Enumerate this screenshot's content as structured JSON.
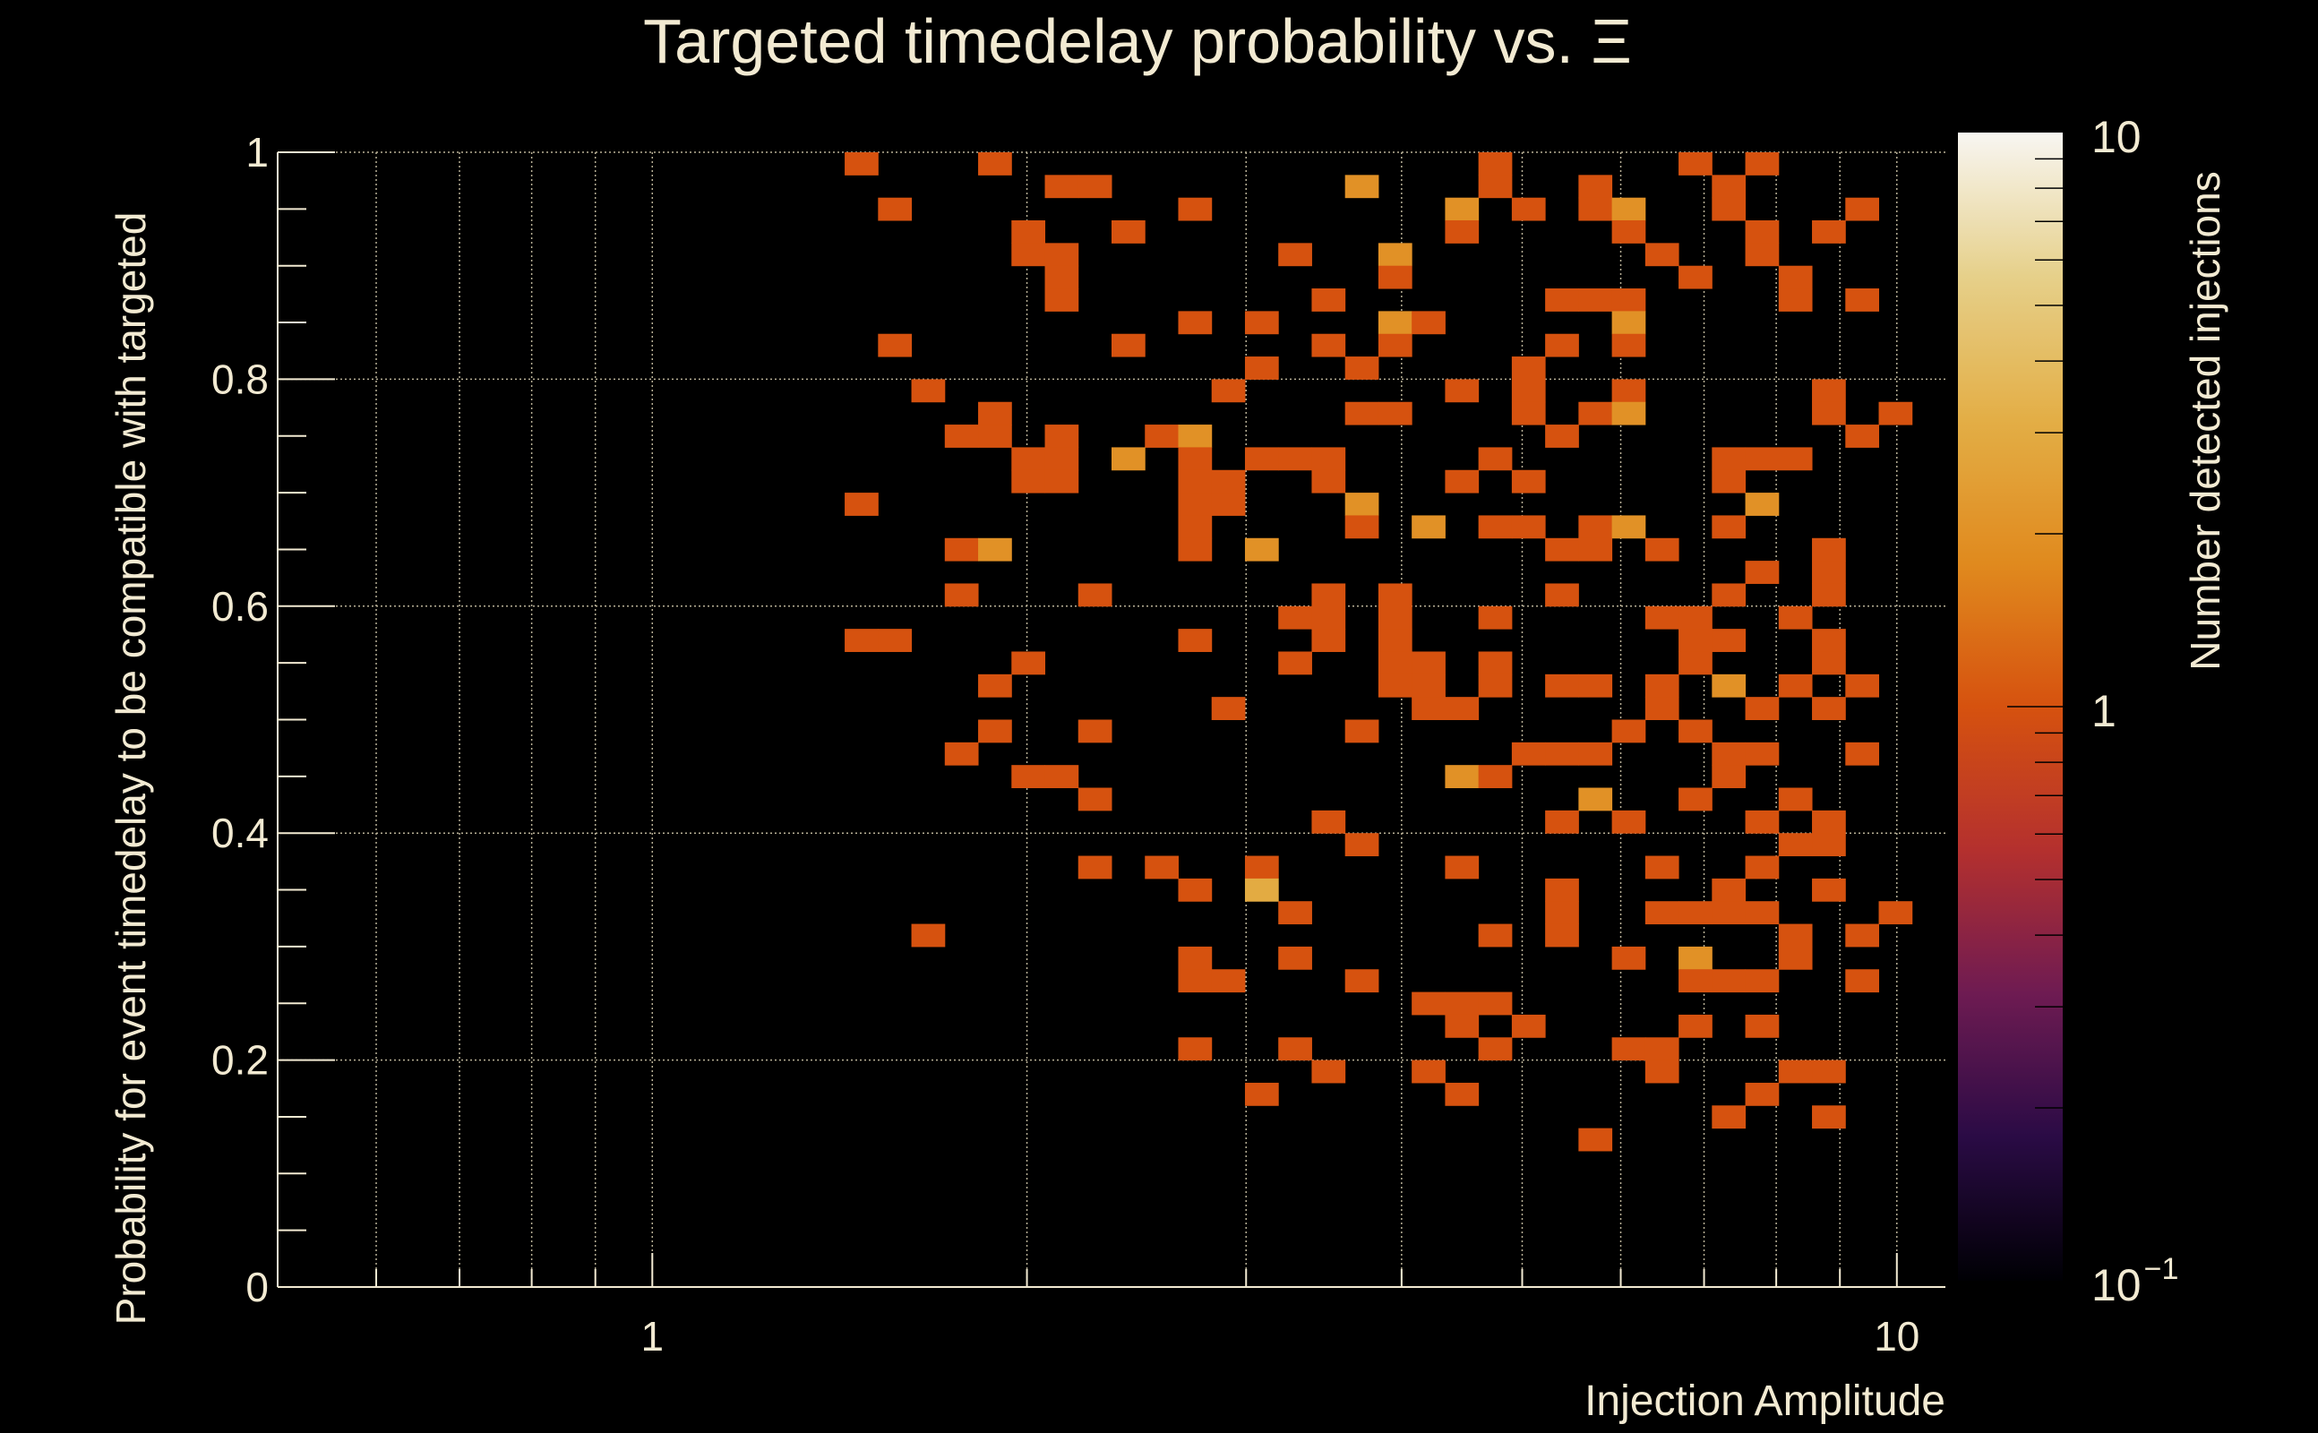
{
  "chart_data": {
    "type": "heatmap",
    "title": "Targeted timedelay probability vs. Ξ",
    "xlabel": "Injection Amplitude",
    "ylabel": "Probability for event timedelay to be compatible with targeted",
    "zlabel": "Number detected injections",
    "x_scale": "log",
    "xlim": [
      0.5,
      10.94
    ],
    "ylim": [
      0,
      1
    ],
    "z_scale": "log",
    "zlim": [
      0.1,
      10
    ],
    "nbins_x": 50,
    "nbins_y": 50,
    "grid": true,
    "x_ticks": [
      {
        "value": 1,
        "label": "1"
      },
      {
        "value": 10,
        "label": "10"
      }
    ],
    "y_ticks": [
      {
        "value": 0,
        "label": "0"
      },
      {
        "value": 0.2,
        "label": "0.2"
      },
      {
        "value": 0.4,
        "label": "0.4"
      },
      {
        "value": 0.6,
        "label": "0.6"
      },
      {
        "value": 0.8,
        "label": "0.8"
      },
      {
        "value": 1,
        "label": "1"
      }
    ],
    "z_ticks": [
      {
        "value": 10,
        "label": "10",
        "exp": ""
      },
      {
        "value": 1,
        "label": "1",
        "exp": ""
      },
      {
        "value": 0.1,
        "label": "10",
        "exp": "−1"
      }
    ],
    "cell_format": [
      "x_bin_index",
      "y_bin_index",
      "count"
    ],
    "cells": [
      [
        17,
        49,
        1
      ],
      [
        21,
        49,
        1
      ],
      [
        36,
        49,
        1
      ],
      [
        42,
        49,
        1
      ],
      [
        44,
        49,
        1
      ],
      [
        23,
        48,
        1
      ],
      [
        24,
        48,
        1
      ],
      [
        32,
        48,
        2
      ],
      [
        36,
        48,
        1
      ],
      [
        39,
        48,
        1
      ],
      [
        43,
        48,
        1
      ],
      [
        18,
        47,
        1
      ],
      [
        27,
        47,
        1
      ],
      [
        35,
        47,
        2
      ],
      [
        37,
        47,
        1
      ],
      [
        39,
        47,
        1
      ],
      [
        40,
        47,
        2
      ],
      [
        43,
        47,
        1
      ],
      [
        47,
        47,
        1
      ],
      [
        22,
        46,
        1
      ],
      [
        25,
        46,
        1
      ],
      [
        35,
        46,
        1
      ],
      [
        40,
        46,
        1
      ],
      [
        44,
        46,
        1
      ],
      [
        46,
        46,
        1
      ],
      [
        22,
        45,
        1
      ],
      [
        23,
        45,
        1
      ],
      [
        30,
        45,
        1
      ],
      [
        33,
        45,
        2
      ],
      [
        41,
        45,
        1
      ],
      [
        44,
        45,
        1
      ],
      [
        23,
        44,
        1
      ],
      [
        33,
        44,
        1
      ],
      [
        42,
        44,
        1
      ],
      [
        45,
        44,
        1
      ],
      [
        23,
        43,
        1
      ],
      [
        31,
        43,
        1
      ],
      [
        38,
        43,
        1
      ],
      [
        39,
        43,
        1
      ],
      [
        40,
        43,
        1
      ],
      [
        45,
        43,
        1
      ],
      [
        47,
        43,
        1
      ],
      [
        27,
        42,
        1
      ],
      [
        29,
        42,
        1
      ],
      [
        33,
        42,
        2
      ],
      [
        34,
        42,
        1
      ],
      [
        40,
        42,
        2
      ],
      [
        18,
        41,
        1
      ],
      [
        25,
        41,
        1
      ],
      [
        31,
        41,
        1
      ],
      [
        33,
        41,
        1
      ],
      [
        38,
        41,
        1
      ],
      [
        40,
        41,
        1
      ],
      [
        29,
        40,
        1
      ],
      [
        32,
        40,
        1
      ],
      [
        37,
        40,
        1
      ],
      [
        19,
        39,
        1
      ],
      [
        28,
        39,
        1
      ],
      [
        35,
        39,
        1
      ],
      [
        37,
        39,
        1
      ],
      [
        40,
        39,
        1
      ],
      [
        46,
        39,
        1
      ],
      [
        21,
        38,
        1
      ],
      [
        32,
        38,
        1
      ],
      [
        33,
        38,
        1
      ],
      [
        37,
        38,
        1
      ],
      [
        39,
        38,
        1
      ],
      [
        40,
        38,
        2
      ],
      [
        46,
        38,
        1
      ],
      [
        48,
        38,
        1
      ],
      [
        20,
        37,
        1
      ],
      [
        21,
        37,
        1
      ],
      [
        23,
        37,
        1
      ],
      [
        26,
        37,
        1
      ],
      [
        27,
        37,
        2
      ],
      [
        38,
        37,
        1
      ],
      [
        47,
        37,
        1
      ],
      [
        22,
        36,
        1
      ],
      [
        23,
        36,
        1
      ],
      [
        25,
        36,
        2
      ],
      [
        27,
        36,
        1
      ],
      [
        29,
        36,
        1
      ],
      [
        30,
        36,
        1
      ],
      [
        31,
        36,
        1
      ],
      [
        36,
        36,
        1
      ],
      [
        43,
        36,
        1
      ],
      [
        44,
        36,
        1
      ],
      [
        45,
        36,
        1
      ],
      [
        22,
        35,
        1
      ],
      [
        23,
        35,
        1
      ],
      [
        27,
        35,
        1
      ],
      [
        28,
        35,
        1
      ],
      [
        31,
        35,
        1
      ],
      [
        35,
        35,
        1
      ],
      [
        37,
        35,
        1
      ],
      [
        43,
        35,
        1
      ],
      [
        17,
        34,
        1
      ],
      [
        27,
        34,
        1
      ],
      [
        28,
        34,
        1
      ],
      [
        32,
        34,
        2
      ],
      [
        44,
        34,
        2
      ],
      [
        27,
        33,
        1
      ],
      [
        32,
        33,
        1
      ],
      [
        34,
        33,
        2
      ],
      [
        36,
        33,
        1
      ],
      [
        37,
        33,
        1
      ],
      [
        39,
        33,
        1
      ],
      [
        40,
        33,
        2
      ],
      [
        43,
        33,
        1
      ],
      [
        20,
        32,
        1
      ],
      [
        21,
        32,
        2
      ],
      [
        27,
        32,
        1
      ],
      [
        29,
        32,
        2
      ],
      [
        38,
        32,
        1
      ],
      [
        39,
        32,
        1
      ],
      [
        41,
        32,
        1
      ],
      [
        46,
        32,
        1
      ],
      [
        44,
        31,
        1
      ],
      [
        46,
        31,
        1
      ],
      [
        20,
        30,
        1
      ],
      [
        24,
        30,
        1
      ],
      [
        31,
        30,
        1
      ],
      [
        33,
        30,
        1
      ],
      [
        38,
        30,
        1
      ],
      [
        43,
        30,
        1
      ],
      [
        46,
        30,
        1
      ],
      [
        30,
        29,
        1
      ],
      [
        31,
        29,
        1
      ],
      [
        33,
        29,
        1
      ],
      [
        36,
        29,
        1
      ],
      [
        41,
        29,
        1
      ],
      [
        42,
        29,
        1
      ],
      [
        45,
        29,
        1
      ],
      [
        17,
        28,
        1
      ],
      [
        18,
        28,
        1
      ],
      [
        27,
        28,
        1
      ],
      [
        31,
        28,
        1
      ],
      [
        33,
        28,
        1
      ],
      [
        42,
        28,
        1
      ],
      [
        43,
        28,
        1
      ],
      [
        46,
        28,
        1
      ],
      [
        22,
        27,
        1
      ],
      [
        30,
        27,
        1
      ],
      [
        33,
        27,
        1
      ],
      [
        34,
        27,
        1
      ],
      [
        36,
        27,
        1
      ],
      [
        42,
        27,
        1
      ],
      [
        46,
        27,
        1
      ],
      [
        21,
        26,
        1
      ],
      [
        33,
        26,
        1
      ],
      [
        34,
        26,
        1
      ],
      [
        36,
        26,
        1
      ],
      [
        38,
        26,
        1
      ],
      [
        39,
        26,
        1
      ],
      [
        41,
        26,
        1
      ],
      [
        43,
        26,
        2
      ],
      [
        45,
        26,
        1
      ],
      [
        47,
        26,
        1
      ],
      [
        28,
        25,
        1
      ],
      [
        34,
        25,
        1
      ],
      [
        35,
        25,
        1
      ],
      [
        41,
        25,
        1
      ],
      [
        44,
        25,
        1
      ],
      [
        46,
        25,
        1
      ],
      [
        21,
        24,
        1
      ],
      [
        24,
        24,
        1
      ],
      [
        32,
        24,
        1
      ],
      [
        40,
        24,
        1
      ],
      [
        42,
        24,
        1
      ],
      [
        20,
        23,
        1
      ],
      [
        37,
        23,
        1
      ],
      [
        38,
        23,
        1
      ],
      [
        39,
        23,
        1
      ],
      [
        43,
        23,
        1
      ],
      [
        44,
        23,
        1
      ],
      [
        47,
        23,
        1
      ],
      [
        22,
        22,
        1
      ],
      [
        23,
        22,
        1
      ],
      [
        35,
        22,
        2
      ],
      [
        36,
        22,
        1
      ],
      [
        43,
        22,
        1
      ],
      [
        24,
        21,
        1
      ],
      [
        39,
        21,
        2
      ],
      [
        42,
        21,
        1
      ],
      [
        45,
        21,
        1
      ],
      [
        31,
        20,
        1
      ],
      [
        38,
        20,
        1
      ],
      [
        40,
        20,
        1
      ],
      [
        44,
        20,
        1
      ],
      [
        46,
        20,
        1
      ],
      [
        32,
        19,
        1
      ],
      [
        45,
        19,
        1
      ],
      [
        46,
        19,
        1
      ],
      [
        24,
        18,
        1
      ],
      [
        26,
        18,
        1
      ],
      [
        29,
        18,
        1
      ],
      [
        35,
        18,
        1
      ],
      [
        41,
        18,
        1
      ],
      [
        44,
        18,
        1
      ],
      [
        27,
        17,
        1
      ],
      [
        29,
        17,
        3
      ],
      [
        38,
        17,
        1
      ],
      [
        43,
        17,
        1
      ],
      [
        46,
        17,
        1
      ],
      [
        30,
        16,
        1
      ],
      [
        38,
        16,
        1
      ],
      [
        41,
        16,
        1
      ],
      [
        42,
        16,
        1
      ],
      [
        43,
        16,
        1
      ],
      [
        44,
        16,
        1
      ],
      [
        48,
        16,
        1
      ],
      [
        19,
        15,
        1
      ],
      [
        36,
        15,
        1
      ],
      [
        38,
        15,
        1
      ],
      [
        45,
        15,
        1
      ],
      [
        47,
        15,
        1
      ],
      [
        27,
        14,
        1
      ],
      [
        30,
        14,
        1
      ],
      [
        40,
        14,
        1
      ],
      [
        42,
        14,
        2
      ],
      [
        45,
        14,
        1
      ],
      [
        27,
        13,
        1
      ],
      [
        28,
        13,
        1
      ],
      [
        32,
        13,
        1
      ],
      [
        42,
        13,
        1
      ],
      [
        43,
        13,
        1
      ],
      [
        44,
        13,
        1
      ],
      [
        47,
        13,
        1
      ],
      [
        34,
        12,
        1
      ],
      [
        35,
        12,
        1
      ],
      [
        36,
        12,
        1
      ],
      [
        35,
        11,
        1
      ],
      [
        37,
        11,
        1
      ],
      [
        42,
        11,
        1
      ],
      [
        44,
        11,
        1
      ],
      [
        27,
        10,
        1
      ],
      [
        30,
        10,
        1
      ],
      [
        36,
        10,
        1
      ],
      [
        40,
        10,
        1
      ],
      [
        41,
        10,
        1
      ],
      [
        31,
        9,
        1
      ],
      [
        34,
        9,
        1
      ],
      [
        41,
        9,
        1
      ],
      [
        45,
        9,
        1
      ],
      [
        46,
        9,
        1
      ],
      [
        29,
        8,
        1
      ],
      [
        35,
        8,
        1
      ],
      [
        44,
        8,
        1
      ],
      [
        43,
        7,
        1
      ],
      [
        46,
        7,
        1
      ],
      [
        39,
        6,
        1
      ]
    ],
    "colormap": [
      "#000004",
      "#2a0b45",
      "#6e1b52",
      "#b4302e",
      "#d6520f",
      "#e08a1e",
      "#e3ae46",
      "#e6d08a",
      "#f8f6f2"
    ]
  }
}
